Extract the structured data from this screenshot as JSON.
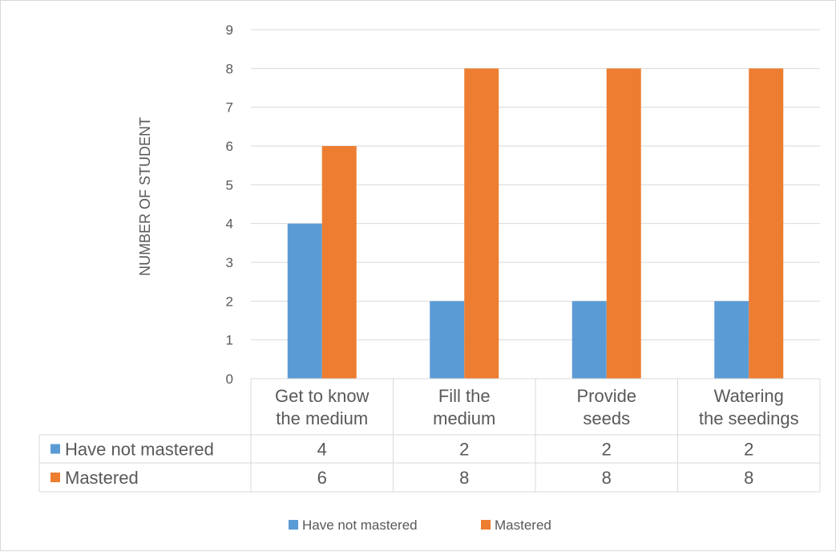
{
  "chart_data": {
    "type": "bar",
    "categories": [
      [
        "Get to know",
        "the medium"
      ],
      [
        "Fill the",
        "medium"
      ],
      [
        "Provide",
        "seeds"
      ],
      [
        "Watering",
        "the seedings"
      ]
    ],
    "series": [
      {
        "name": "Have not mastered",
        "values": [
          4,
          2,
          2,
          2
        ],
        "color": "#5b9bd5"
      },
      {
        "name": "Mastered",
        "values": [
          6,
          8,
          8,
          8
        ],
        "color": "#ed7d31"
      }
    ],
    "title": "",
    "xlabel": "",
    "ylabel": "NUMBER OF STUDENT",
    "ylim": [
      0,
      9
    ],
    "yticks": [
      0,
      1,
      2,
      3,
      4,
      5,
      6,
      7,
      8,
      9
    ],
    "grid": true,
    "data_table": true,
    "legend": "bottom-center",
    "gridline_color": "#d9d9d9",
    "text_color": "#595959"
  }
}
